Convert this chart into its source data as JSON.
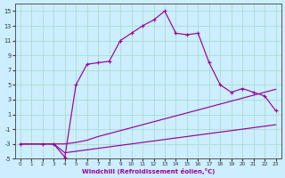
{
  "xlabel": "Windchill (Refroidissement éolien,°C)",
  "bg_color": "#cceeff",
  "grid_color": "#aaddcc",
  "line_color": "#990099",
  "xlim": [
    -0.5,
    23.5
  ],
  "ylim": [
    -5,
    16
  ],
  "xticks": [
    0,
    1,
    2,
    3,
    4,
    5,
    6,
    7,
    8,
    9,
    10,
    11,
    12,
    13,
    14,
    15,
    16,
    17,
    18,
    19,
    20,
    21,
    22,
    23
  ],
  "yticks": [
    -5,
    -3,
    -1,
    1,
    3,
    5,
    7,
    9,
    11,
    13,
    15
  ],
  "line_main_x": [
    0,
    2,
    3,
    4,
    5,
    6,
    7,
    8,
    9,
    10,
    11,
    12,
    13,
    14,
    15,
    16,
    17,
    18,
    19,
    20,
    21,
    22,
    23
  ],
  "line_main_y": [
    -3,
    -3,
    -3,
    -4.8,
    5,
    7.8,
    8,
    8.2,
    11,
    12,
    13,
    13.8,
    15,
    12,
    11.8,
    12,
    8,
    5,
    4,
    4.5,
    4,
    3.5,
    1.5
  ],
  "line_mid_x": [
    0,
    1,
    2,
    3,
    4,
    5,
    6,
    7,
    8,
    9,
    10,
    11,
    12,
    13,
    14,
    15,
    16,
    17,
    18,
    19,
    20,
    21,
    22,
    23
  ],
  "line_mid_y": [
    -3,
    -3,
    -3,
    -3,
    -3,
    -2.8,
    -2.5,
    -2.0,
    -1.6,
    -1.2,
    -0.8,
    -0.4,
    0,
    0.4,
    0.8,
    1.2,
    1.6,
    2.0,
    2.4,
    2.8,
    3.2,
    3.6,
    4.0,
    4.4
  ],
  "line_low_x": [
    0,
    1,
    2,
    3,
    4,
    5,
    6,
    7,
    8,
    9,
    10,
    11,
    12,
    13,
    14,
    15,
    16,
    17,
    18,
    19,
    20,
    21,
    22,
    23
  ],
  "line_low_y": [
    -3,
    -3,
    -3,
    -3,
    -4.2,
    -4.0,
    -3.8,
    -3.6,
    -3.4,
    -3.2,
    -3.0,
    -2.8,
    -2.6,
    -2.4,
    -2.2,
    -2.0,
    -1.8,
    -1.6,
    -1.4,
    -1.2,
    -1.0,
    -0.8,
    -0.6,
    -0.4
  ]
}
